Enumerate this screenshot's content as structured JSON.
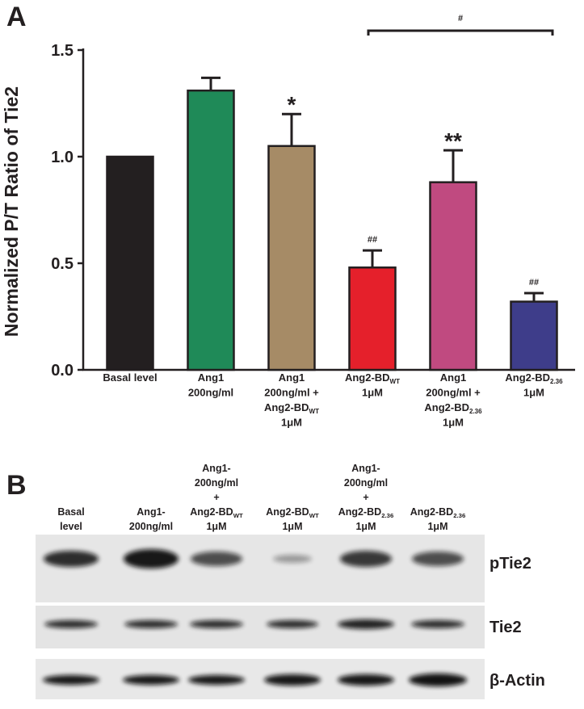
{
  "chart_data": {
    "type": "bar",
    "panel_label": "A",
    "y_label": "Normalized P/T Ratio of Tie2",
    "categories": [
      [
        "Basal level"
      ],
      [
        "Ang1",
        "200ng/ml"
      ],
      [
        "Ang1",
        "200ng/ml +",
        {
          "text": "Ang2-BD",
          "sub": "WT"
        },
        "1μM"
      ],
      [
        {
          "text": "Ang2-BD",
          "sub": "WT"
        },
        "1μM"
      ],
      [
        "Ang1",
        "200ng/ml +",
        {
          "text": "Ang2-BD",
          "sub": "2.36"
        },
        "1μM"
      ],
      [
        {
          "text": "Ang2-BD",
          "sub": "2.36"
        },
        "1μM"
      ]
    ],
    "values": [
      1.0,
      1.31,
      1.05,
      0.48,
      0.88,
      0.32
    ],
    "errors": [
      null,
      0.06,
      0.15,
      0.08,
      0.15,
      0.04
    ],
    "colors": [
      "#231f20",
      "#1f8a58",
      "#a68b66",
      "#e5202b",
      "#c04a80",
      "#3e3d8a"
    ],
    "annotations": [
      null,
      null,
      "*",
      "##",
      "**",
      "##"
    ],
    "bracket_label": "#",
    "ylim": [
      0,
      1.5
    ],
    "yticks": [
      {
        "value": 0,
        "label": "0.0"
      },
      {
        "value": 0.5,
        "label": "0.5"
      },
      {
        "value": 1,
        "label": "1.0"
      },
      {
        "value": 1.5,
        "label": "1.5"
      }
    ]
  },
  "blot": {
    "panel_label": "B",
    "lanes": [
      [
        "Basal",
        "level"
      ],
      [
        "Ang1-",
        "200ng/ml"
      ],
      [
        "Ang1-",
        "200ng/ml",
        "+",
        {
          "text": "Ang2-BD",
          "sub": "WT"
        },
        "1μM"
      ],
      [
        {
          "text": "Ang2-BD",
          "sub": "WT"
        },
        "1μM"
      ],
      [
        "Ang1-",
        "200ng/ml",
        "+",
        {
          "text": "Ang2-BD",
          "sub": "2.36"
        },
        "1μM"
      ],
      [
        {
          "text": "Ang2-BD",
          "sub": "2.36"
        },
        "1μM"
      ]
    ],
    "rows": [
      "pTie2",
      "Tie2",
      "β-Actin"
    ]
  }
}
